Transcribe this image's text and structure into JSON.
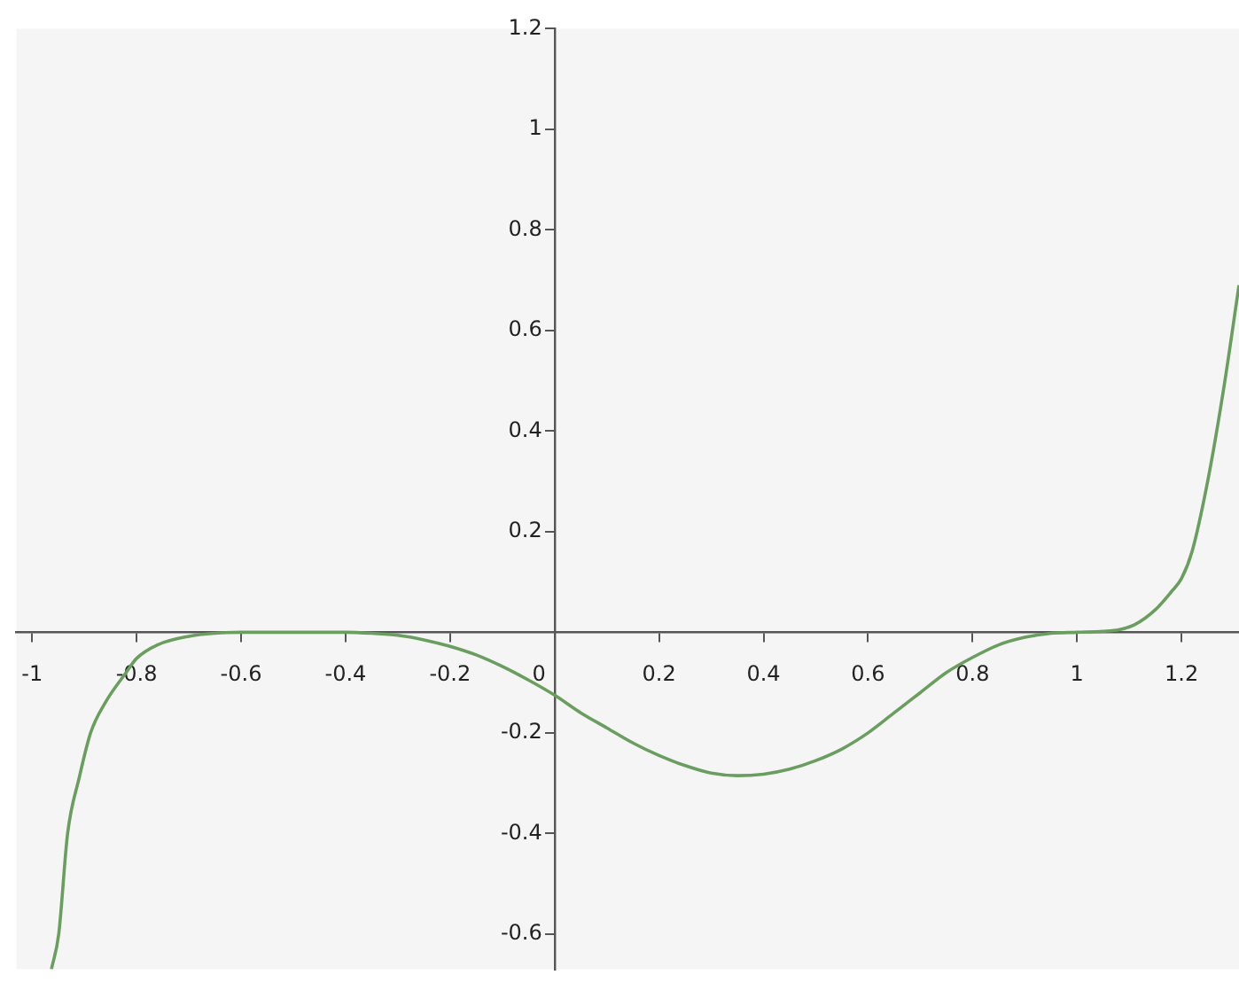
{
  "chart_data": {
    "type": "line",
    "x": [
      -0.963,
      -0.949,
      -0.932,
      -0.91,
      -0.888,
      -0.86,
      -0.82,
      -0.8,
      -0.76,
      -0.7,
      -0.65,
      -0.6,
      -0.5,
      -0.4,
      -0.35,
      -0.3,
      -0.25,
      -0.2,
      -0.15,
      -0.1,
      -0.05,
      0,
      0.05,
      0.1,
      0.15,
      0.2,
      0.25,
      0.3,
      0.35,
      0.4,
      0.45,
      0.5,
      0.55,
      0.6,
      0.65,
      0.7,
      0.75,
      0.8,
      0.85,
      0.9,
      0.95,
      1,
      1.05,
      1.08,
      1.11,
      1.15,
      1.18,
      1.2,
      1.22,
      1.25,
      1.28,
      1.31
    ],
    "series": [
      {
        "color": "#6a9e5f",
        "values": [
          -0.67,
          -0.6,
          -0.4,
          -0.29,
          -0.2,
          -0.14,
          -0.08,
          -0.052,
          -0.025,
          -0.008,
          -0.002,
          0,
          0,
          0,
          -0.002,
          -0.006,
          -0.015,
          -0.028,
          -0.045,
          -0.068,
          -0.095,
          -0.125,
          -0.16,
          -0.19,
          -0.22,
          -0.245,
          -0.265,
          -0.28,
          -0.285,
          -0.282,
          -0.272,
          -0.255,
          -0.232,
          -0.2,
          -0.16,
          -0.12,
          -0.08,
          -0.05,
          -0.025,
          -0.01,
          -0.002,
          0,
          0.002,
          0.005,
          0.015,
          0.045,
          0.08,
          0.107,
          0.16,
          0.3,
          0.48,
          0.69
        ]
      }
    ],
    "xlim": [
      -1.03,
      1.31
    ],
    "ylim": [
      -0.67,
      1.2
    ],
    "xticks": [
      -1,
      -0.8,
      -0.6,
      -0.4,
      -0.2,
      0,
      0.2,
      0.4,
      0.6,
      0.8,
      1,
      1.2
    ],
    "yticks": [
      -0.6,
      -0.4,
      -0.2,
      {
        "value": 0,
        "label": null
      },
      0.2,
      0.4,
      0.6,
      0.8,
      1,
      1.2
    ],
    "grid": false,
    "legend": false,
    "marker": "none",
    "line_style": "solid"
  }
}
